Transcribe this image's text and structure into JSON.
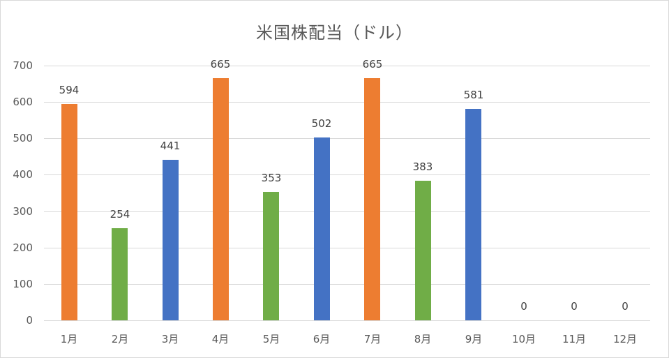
{
  "chart_data": {
    "type": "bar",
    "title": "米国株配当（ドル）",
    "xlabel": "",
    "ylabel": "",
    "ylim": [
      0,
      700
    ],
    "yticks": [
      0,
      100,
      200,
      300,
      400,
      500,
      600,
      700
    ],
    "grid": true,
    "legend": "none",
    "categories": [
      "1月",
      "2月",
      "3月",
      "4月",
      "5月",
      "6月",
      "7月",
      "8月",
      "9月",
      "10月",
      "11月",
      "12月"
    ],
    "values": [
      594,
      254,
      441,
      665,
      353,
      502,
      665,
      383,
      581,
      0,
      0,
      0
    ],
    "bar_colors": [
      "#ED7D31",
      "#70AD47",
      "#4472C4",
      "#ED7D31",
      "#70AD47",
      "#4472C4",
      "#ED7D31",
      "#70AD47",
      "#4472C4",
      "#ED7D31",
      "#70AD47",
      "#4472C4"
    ],
    "data_labels": [
      "594",
      "254",
      "441",
      "665",
      "353",
      "502",
      "665",
      "383",
      "581",
      "0",
      "0",
      "0"
    ]
  }
}
